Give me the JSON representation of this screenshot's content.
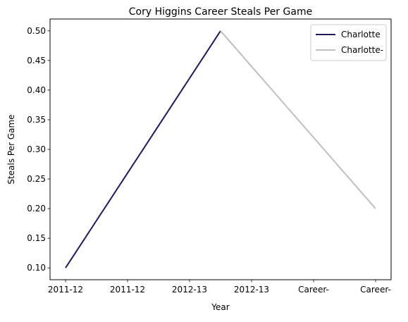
{
  "chart_data": {
    "type": "line",
    "title": "Cory Higgins Career Steals Per Game",
    "xlabel": "Year",
    "ylabel": "Steals Per Game",
    "x_tick_labels": [
      "2011-12",
      "2011-12",
      "2012-13",
      "2012-13",
      "Career-",
      "Career-"
    ],
    "x_range": [
      -0.25,
      5.25
    ],
    "y_range": [
      0.08,
      0.52
    ],
    "y_ticks": [
      0.1,
      0.15,
      0.2,
      0.25,
      0.3,
      0.35,
      0.4,
      0.45,
      0.5
    ],
    "grid": false,
    "legend_position": "top-right",
    "series": [
      {
        "name": "Charlotte",
        "color": "#1f1a5c",
        "x": [
          0,
          2.5
        ],
        "y": [
          0.1,
          0.5
        ]
      },
      {
        "name": "Charlotte-",
        "color": "#c0c0c0",
        "x": [
          2.5,
          5
        ],
        "y": [
          0.5,
          0.2
        ]
      }
    ]
  }
}
